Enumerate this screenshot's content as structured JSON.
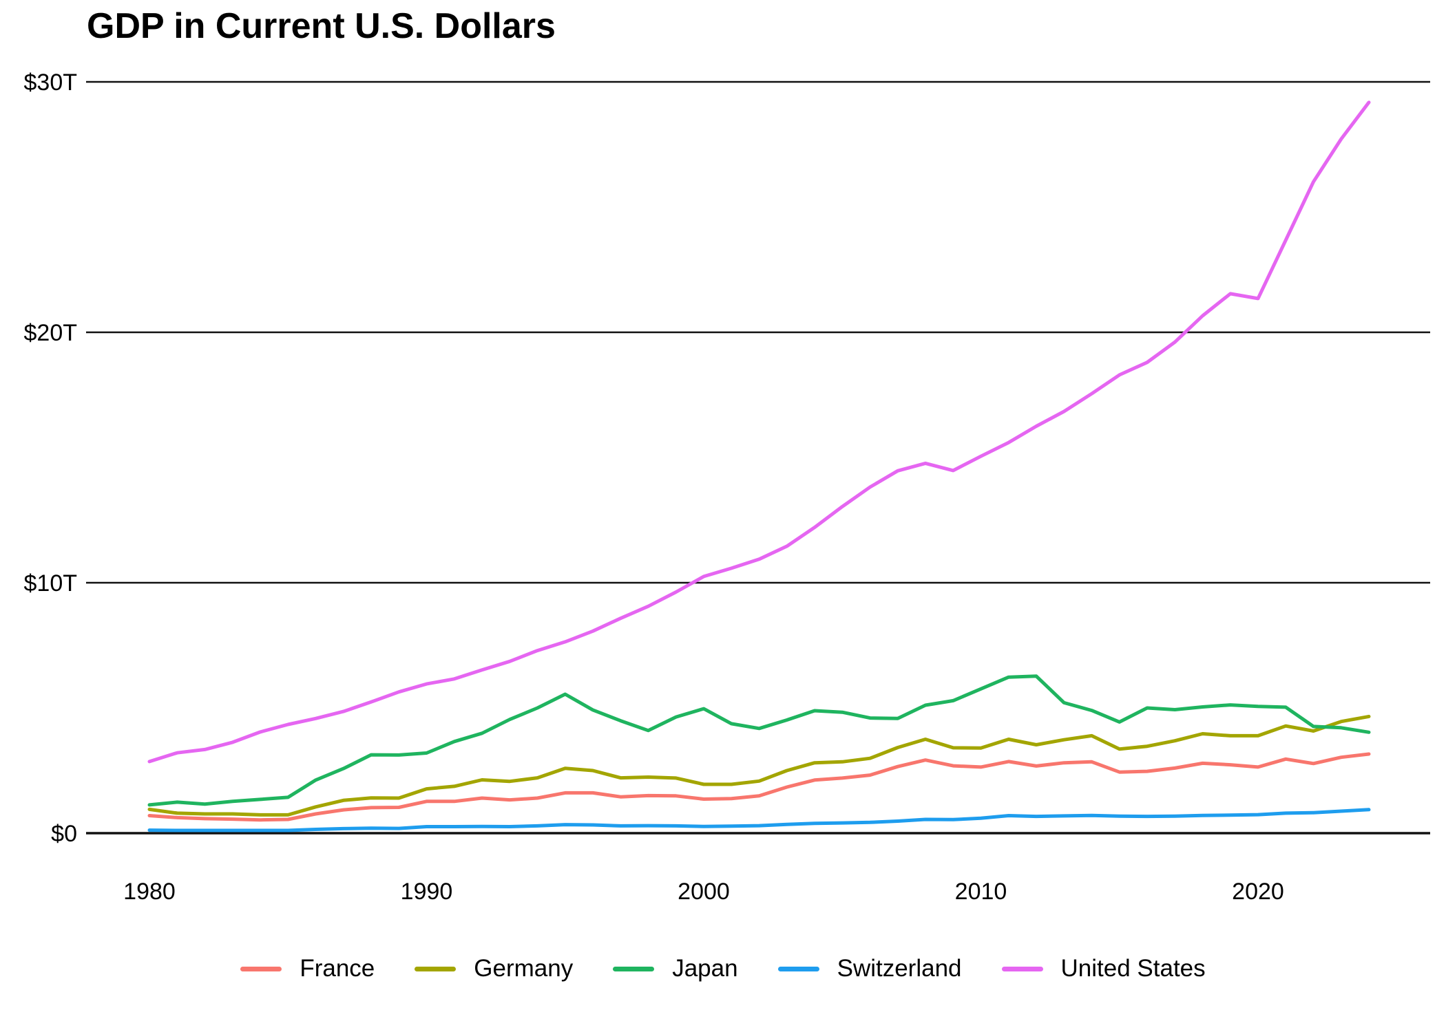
{
  "page": {
    "background_color": "#ffffff",
    "text_color": "#000000"
  },
  "chart_data": {
    "type": "line",
    "title": "GDP in Current U.S. Dollars",
    "xlabel": "",
    "ylabel": "",
    "units": "trillions of current U.S. dollars",
    "xlim": [
      1980,
      2024
    ],
    "ylim": [
      0,
      30
    ],
    "grid": "horizontal",
    "gridline_color": "#111111",
    "axis_color": "#000000",
    "legend_position": "bottom",
    "x": [
      1980,
      1981,
      1982,
      1983,
      1984,
      1985,
      1986,
      1987,
      1988,
      1989,
      1990,
      1991,
      1992,
      1993,
      1994,
      1995,
      1996,
      1997,
      1998,
      1999,
      2000,
      2001,
      2002,
      2003,
      2004,
      2005,
      2006,
      2007,
      2008,
      2009,
      2010,
      2011,
      2012,
      2013,
      2014,
      2015,
      2016,
      2017,
      2018,
      2019,
      2020,
      2021,
      2022,
      2023,
      2024
    ],
    "xticks": {
      "values": [
        1980,
        1990,
        2000,
        2010,
        2020
      ],
      "labels": [
        "1980",
        "1990",
        "2000",
        "2010",
        "2020"
      ]
    },
    "yticks": {
      "values": [
        0,
        10,
        20,
        30
      ],
      "labels": [
        "$0",
        "$10T",
        "$20T",
        "$30T"
      ]
    },
    "series": [
      {
        "name": "France",
        "color": "#F8766D",
        "values": [
          0.7,
          0.62,
          0.58,
          0.56,
          0.53,
          0.55,
          0.77,
          0.93,
          1.02,
          1.03,
          1.27,
          1.27,
          1.4,
          1.33,
          1.4,
          1.61,
          1.61,
          1.45,
          1.5,
          1.49,
          1.36,
          1.38,
          1.49,
          1.84,
          2.12,
          2.2,
          2.32,
          2.66,
          2.92,
          2.69,
          2.64,
          2.86,
          2.68,
          2.81,
          2.85,
          2.44,
          2.47,
          2.6,
          2.79,
          2.73,
          2.64,
          2.96,
          2.78,
          3.03,
          3.16
        ]
      },
      {
        "name": "Germany",
        "color": "#A3A500",
        "values": [
          0.95,
          0.8,
          0.77,
          0.77,
          0.73,
          0.73,
          1.05,
          1.31,
          1.41,
          1.4,
          1.77,
          1.87,
          2.13,
          2.07,
          2.21,
          2.59,
          2.5,
          2.21,
          2.24,
          2.2,
          1.95,
          1.95,
          2.08,
          2.5,
          2.81,
          2.85,
          2.99,
          3.42,
          3.75,
          3.41,
          3.4,
          3.75,
          3.53,
          3.73,
          3.89,
          3.36,
          3.47,
          3.69,
          3.97,
          3.89,
          3.89,
          4.28,
          4.08,
          4.46,
          4.66
        ]
      },
      {
        "name": "Japan",
        "color": "#1FB45F",
        "values": [
          1.13,
          1.24,
          1.16,
          1.27,
          1.35,
          1.43,
          2.12,
          2.58,
          3.13,
          3.12,
          3.2,
          3.66,
          3.99,
          4.54,
          5.0,
          5.55,
          4.92,
          4.49,
          4.1,
          4.64,
          4.97,
          4.37,
          4.18,
          4.52,
          4.89,
          4.83,
          4.6,
          4.58,
          5.11,
          5.29,
          5.76,
          6.23,
          6.27,
          5.21,
          4.9,
          4.44,
          5.0,
          4.93,
          5.04,
          5.12,
          5.06,
          5.03,
          4.26,
          4.21,
          4.03
        ]
      },
      {
        "name": "Switzerland",
        "color": "#1E9DEE",
        "values": [
          0.12,
          0.11,
          0.11,
          0.11,
          0.11,
          0.11,
          0.15,
          0.18,
          0.2,
          0.19,
          0.26,
          0.26,
          0.27,
          0.26,
          0.29,
          0.34,
          0.33,
          0.29,
          0.3,
          0.29,
          0.27,
          0.28,
          0.3,
          0.35,
          0.39,
          0.41,
          0.43,
          0.48,
          0.55,
          0.54,
          0.6,
          0.7,
          0.67,
          0.69,
          0.71,
          0.68,
          0.67,
          0.68,
          0.71,
          0.72,
          0.74,
          0.8,
          0.82,
          0.88,
          0.94
        ]
      },
      {
        "name": "United States",
        "color": "#E566F1",
        "values": [
          2.86,
          3.21,
          3.34,
          3.63,
          4.04,
          4.34,
          4.58,
          4.86,
          5.24,
          5.64,
          5.96,
          6.16,
          6.52,
          6.86,
          7.29,
          7.64,
          8.07,
          8.58,
          9.06,
          9.63,
          10.25,
          10.58,
          10.94,
          11.46,
          12.21,
          13.04,
          13.82,
          14.47,
          14.77,
          14.48,
          15.05,
          15.6,
          16.25,
          16.84,
          17.55,
          18.3,
          18.8,
          19.61,
          20.66,
          21.54,
          21.35,
          23.68,
          26.01,
          27.72,
          29.18
        ]
      }
    ]
  }
}
